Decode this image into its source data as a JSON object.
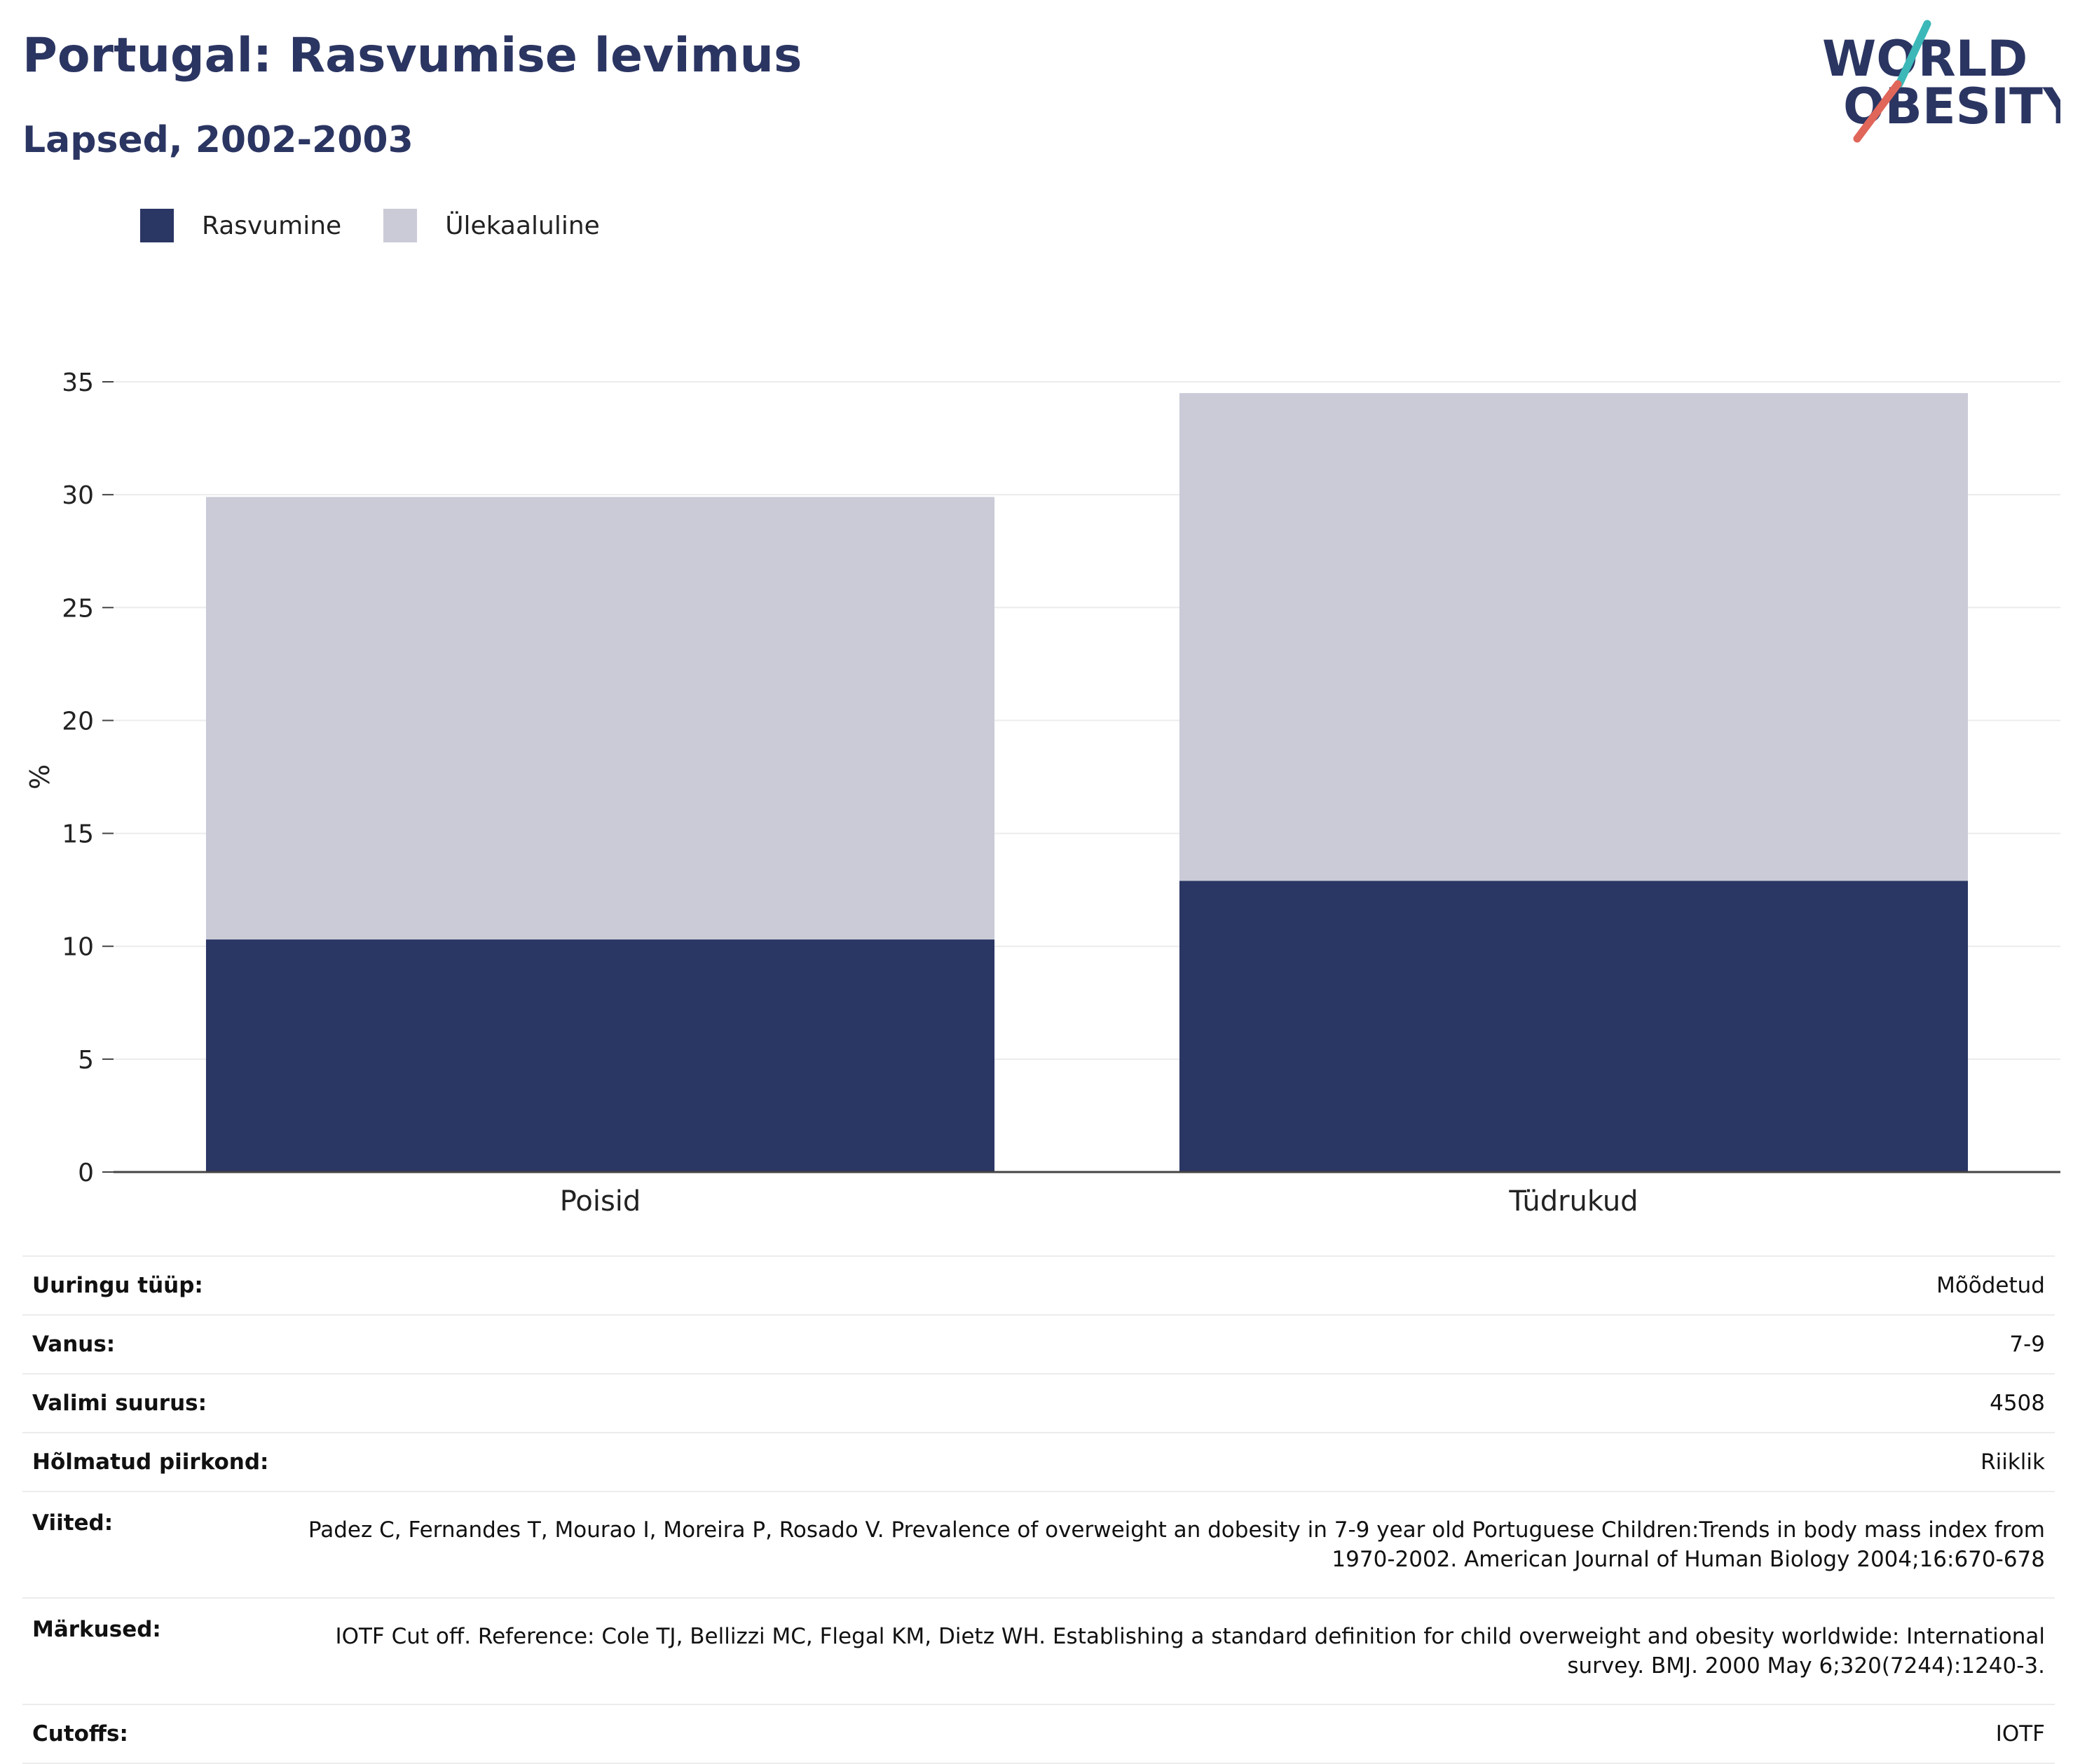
{
  "header": {
    "title": "Portugal: Rasvumise levimus",
    "subtitle": "Lapsed, 2002-2003"
  },
  "logo": {
    "line1": "WORLD",
    "line2": "OBESITY"
  },
  "colors": {
    "obesity": "#2a3663",
    "overweight": "#cacbd7",
    "slash_teal": "#3cb8b8",
    "slash_red": "#e0665a"
  },
  "legend": [
    {
      "label": "Rasvumine",
      "color": "#2a3663"
    },
    {
      "label": "Ülekaaluline",
      "color": "#cacbd7"
    }
  ],
  "chart_data": {
    "type": "bar",
    "stacked": true,
    "categories": [
      "Poisid",
      "Tüdrukud"
    ],
    "series": [
      {
        "name": "Rasvumine",
        "values": [
          10.3,
          12.9
        ]
      },
      {
        "name": "Ülekaaluline",
        "values": [
          19.6,
          21.6
        ]
      }
    ],
    "ylabel": "%",
    "ylim": [
      0,
      35
    ],
    "yticks": [
      0,
      5,
      10,
      15,
      20,
      25,
      30,
      35
    ],
    "grid": true,
    "legend_position": "top-left"
  },
  "info": [
    {
      "key": "Uuringu tüüp:",
      "value": "Mõõdetud"
    },
    {
      "key": "Vanus:",
      "value": "7-9"
    },
    {
      "key": "Valimi suurus:",
      "value": "4508"
    },
    {
      "key": "Hõlmatud piirkond:",
      "value": "Riiklik"
    },
    {
      "key": "Viited:",
      "value": "Padez C, Fernandes T, Mourao I, Moreira P, Rosado V. Prevalence of overweight an dobesity in 7-9 year old Portuguese Children:Trends in body mass index from 1970-2002. American Journal of Human Biology 2004;16:670-678"
    },
    {
      "key": "Märkused:",
      "value": "IOTF Cut off. Reference: Cole TJ, Bellizzi MC, Flegal KM, Dietz WH. Establishing a standard definition for child overweight and obesity worldwide: International survey. BMJ. 2000 May 6;320(7244):1240-3."
    },
    {
      "key": "Cutoffs:",
      "value": "IOTF"
    }
  ]
}
